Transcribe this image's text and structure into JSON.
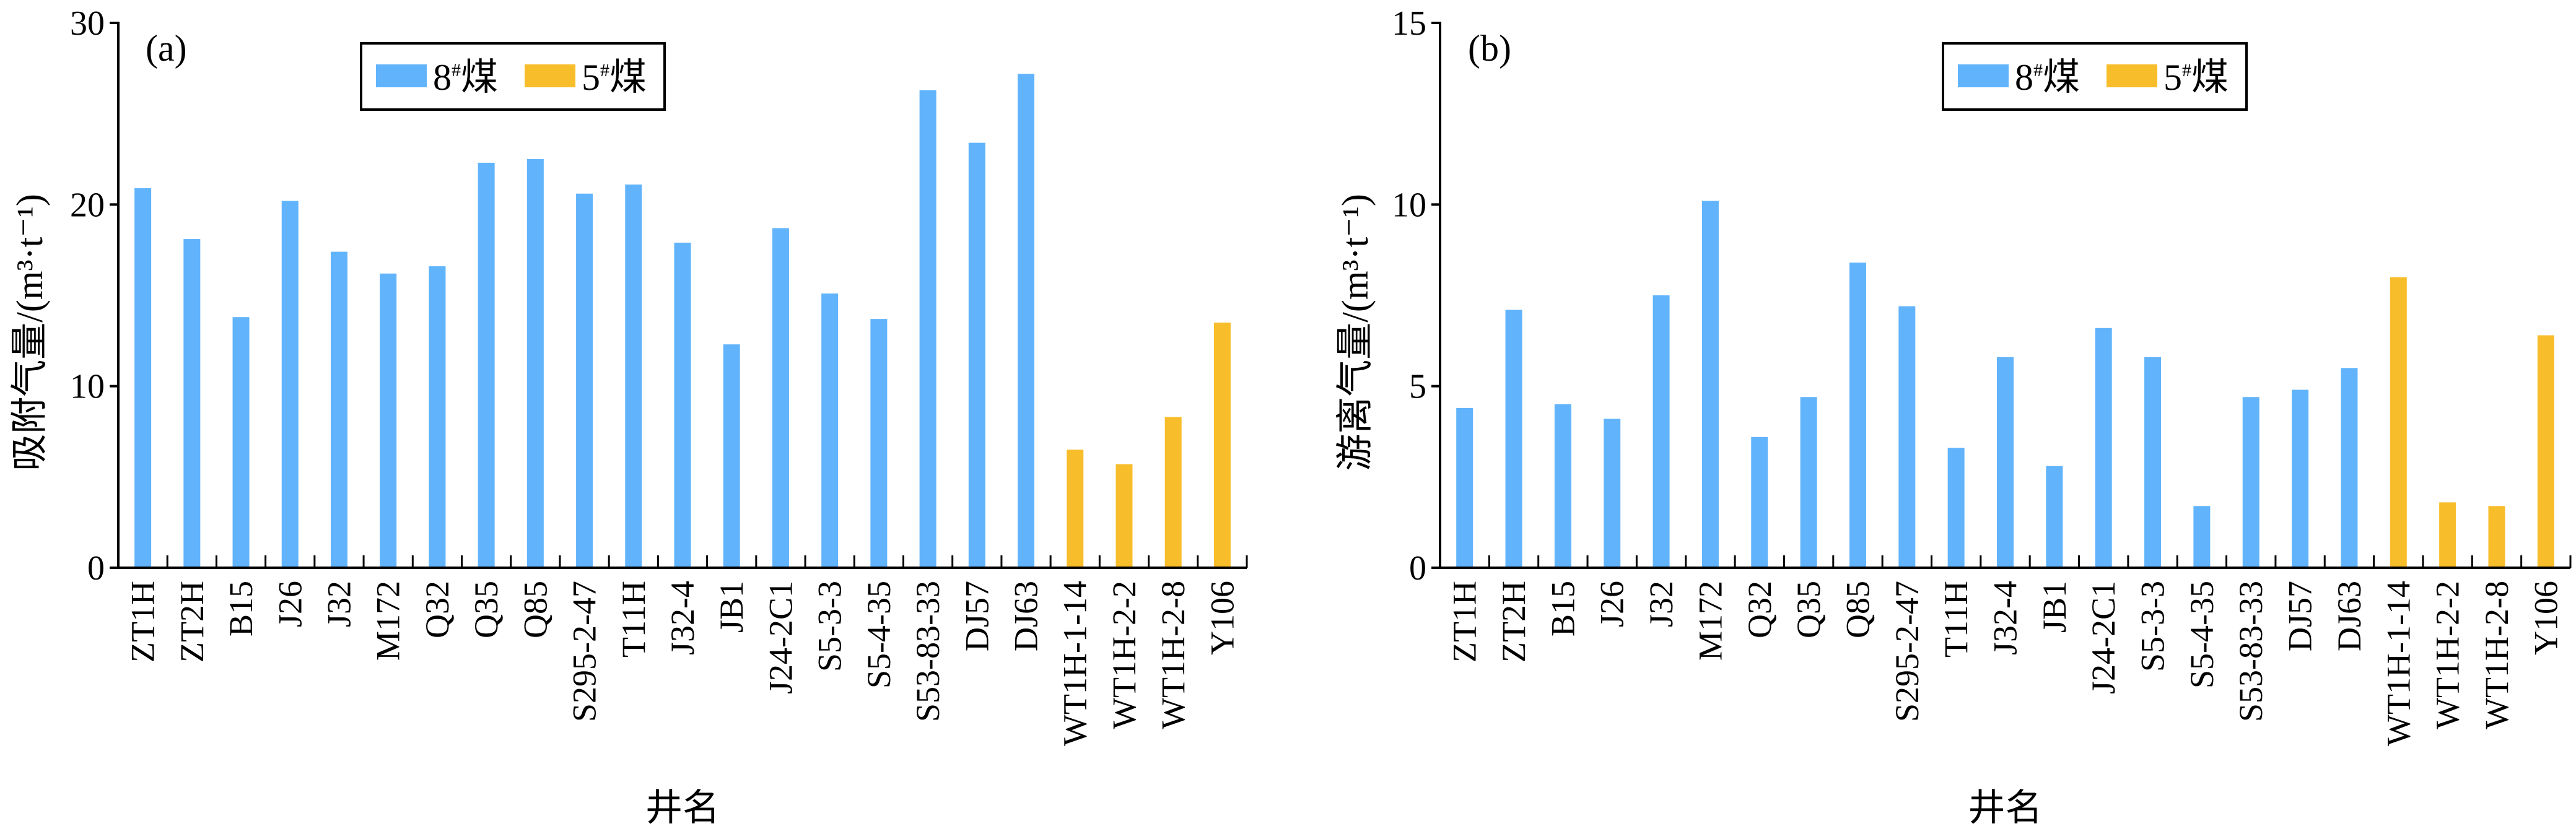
{
  "chart_data": [
    {
      "type": "bar",
      "panel": "(a)",
      "title": "",
      "xlabel": "井名",
      "ylabel": "吸附气量/(m³·t⁻¹)",
      "ylim": [
        0,
        30
      ],
      "yticks": [
        0,
        10,
        20,
        30
      ],
      "legend_position": "top-center",
      "categories": [
        "ZT1H",
        "ZT2H",
        "B15",
        "J26",
        "J32",
        "M172",
        "Q32",
        "Q35",
        "Q85",
        "S295-2-47",
        "T11H",
        "J32-4",
        "JB1",
        "J24-2C1",
        "S5-3-3",
        "S5-4-35",
        "S53-83-33",
        "DJ57",
        "DJ63",
        "WT1H-1-14",
        "WT1H-2-2",
        "WT1H-2-8",
        "Y106"
      ],
      "values": [
        20.9,
        18.1,
        13.8,
        20.2,
        17.4,
        16.2,
        16.6,
        22.3,
        22.5,
        20.6,
        21.1,
        17.9,
        12.3,
        18.7,
        15.1,
        13.7,
        26.3,
        23.4,
        27.2,
        6.5,
        5.7,
        8.3,
        13.5
      ],
      "series_of_category": [
        "8",
        "8",
        "8",
        "8",
        "8",
        "8",
        "8",
        "8",
        "8",
        "8",
        "8",
        "8",
        "8",
        "8",
        "8",
        "8",
        "8",
        "8",
        "8",
        "5",
        "5",
        "5",
        "5"
      ]
    },
    {
      "type": "bar",
      "panel": "(b)",
      "title": "",
      "xlabel": "井名",
      "ylabel": "游离气量/(m³·t⁻¹)",
      "ylim": [
        0,
        15
      ],
      "yticks": [
        0,
        5,
        10,
        15
      ],
      "legend_position": "top-center",
      "categories": [
        "ZT1H",
        "ZT2H",
        "B15",
        "J26",
        "J32",
        "M172",
        "Q32",
        "Q35",
        "Q85",
        "S295-2-47",
        "T11H",
        "J32-4",
        "JB1",
        "J24-2C1",
        "S5-3-3",
        "S5-4-35",
        "S53-83-33",
        "DJ57",
        "DJ63",
        "WT1H-1-14",
        "WT1H-2-2",
        "WT1H-2-8",
        "Y106"
      ],
      "values": [
        4.4,
        7.1,
        4.5,
        4.1,
        7.5,
        10.1,
        3.6,
        4.7,
        8.4,
        7.2,
        3.3,
        5.8,
        2.8,
        6.6,
        5.8,
        1.7,
        4.7,
        4.9,
        5.5,
        8.0,
        1.8,
        1.7,
        6.4
      ],
      "series_of_category": [
        "8",
        "8",
        "8",
        "8",
        "8",
        "8",
        "8",
        "8",
        "8",
        "8",
        "8",
        "8",
        "8",
        "8",
        "8",
        "8",
        "8",
        "8",
        "8",
        "5",
        "5",
        "5",
        "5"
      ]
    }
  ],
  "legend": [
    {
      "key": "8",
      "num": "8",
      "sup": "#",
      "text": "煤",
      "color": "#61b4fc"
    },
    {
      "key": "5",
      "num": "5",
      "sup": "#",
      "text": "煤",
      "color": "#f8bd2a"
    }
  ]
}
